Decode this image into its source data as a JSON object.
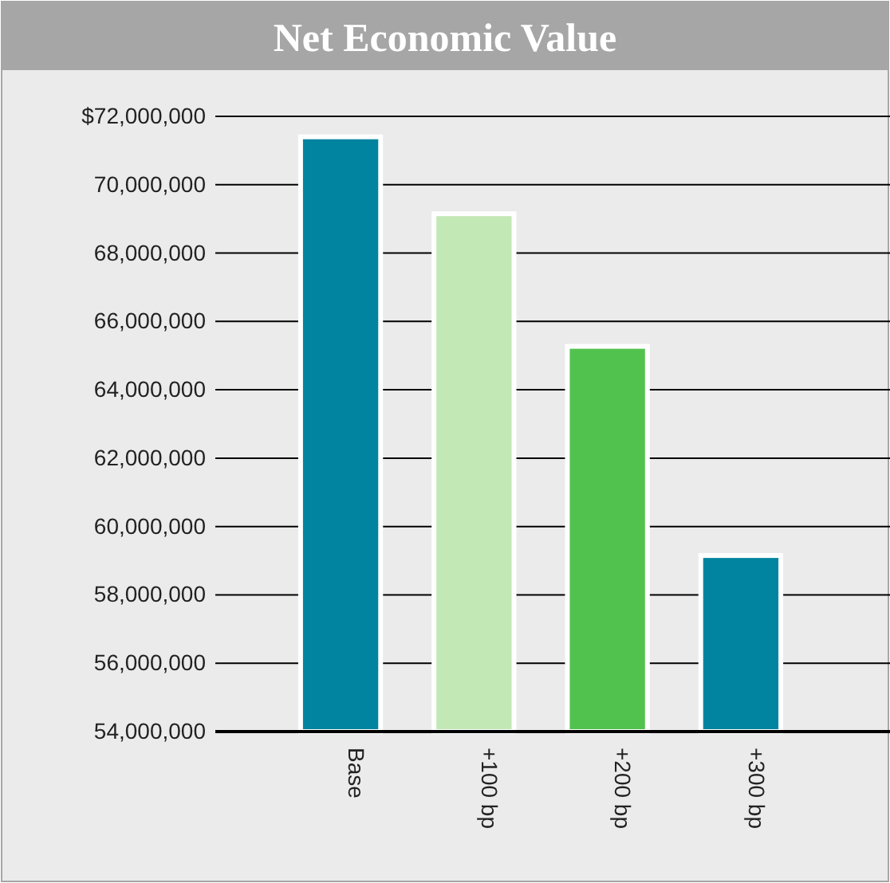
{
  "chart_data": {
    "type": "bar",
    "title": "Net Economic Value",
    "categories": [
      "Base",
      "+100 bp",
      "+200 bp",
      "+300 bp"
    ],
    "values": [
      71400000,
      69150000,
      65270000,
      59150000
    ],
    "colors": [
      "#00849f",
      "#c2e8b6",
      "#52c24f",
      "#00849f"
    ],
    "ylim": [
      54000000,
      72000000
    ],
    "yticks": [
      {
        "value": 72000000,
        "label": "$72,000,000"
      },
      {
        "value": 70000000,
        "label": "70,000,000"
      },
      {
        "value": 68000000,
        "label": "68,000,000"
      },
      {
        "value": 66000000,
        "label": "66,000,000"
      },
      {
        "value": 64000000,
        "label": "64,000,000"
      },
      {
        "value": 62000000,
        "label": "62,000,000"
      },
      {
        "value": 60000000,
        "label": "60,000,000"
      },
      {
        "value": 58000000,
        "label": "58,000,000"
      },
      {
        "value": 56000000,
        "label": "56,000,000"
      },
      {
        "value": 54000000,
        "label": "54,000,000"
      }
    ],
    "grid": "y"
  }
}
